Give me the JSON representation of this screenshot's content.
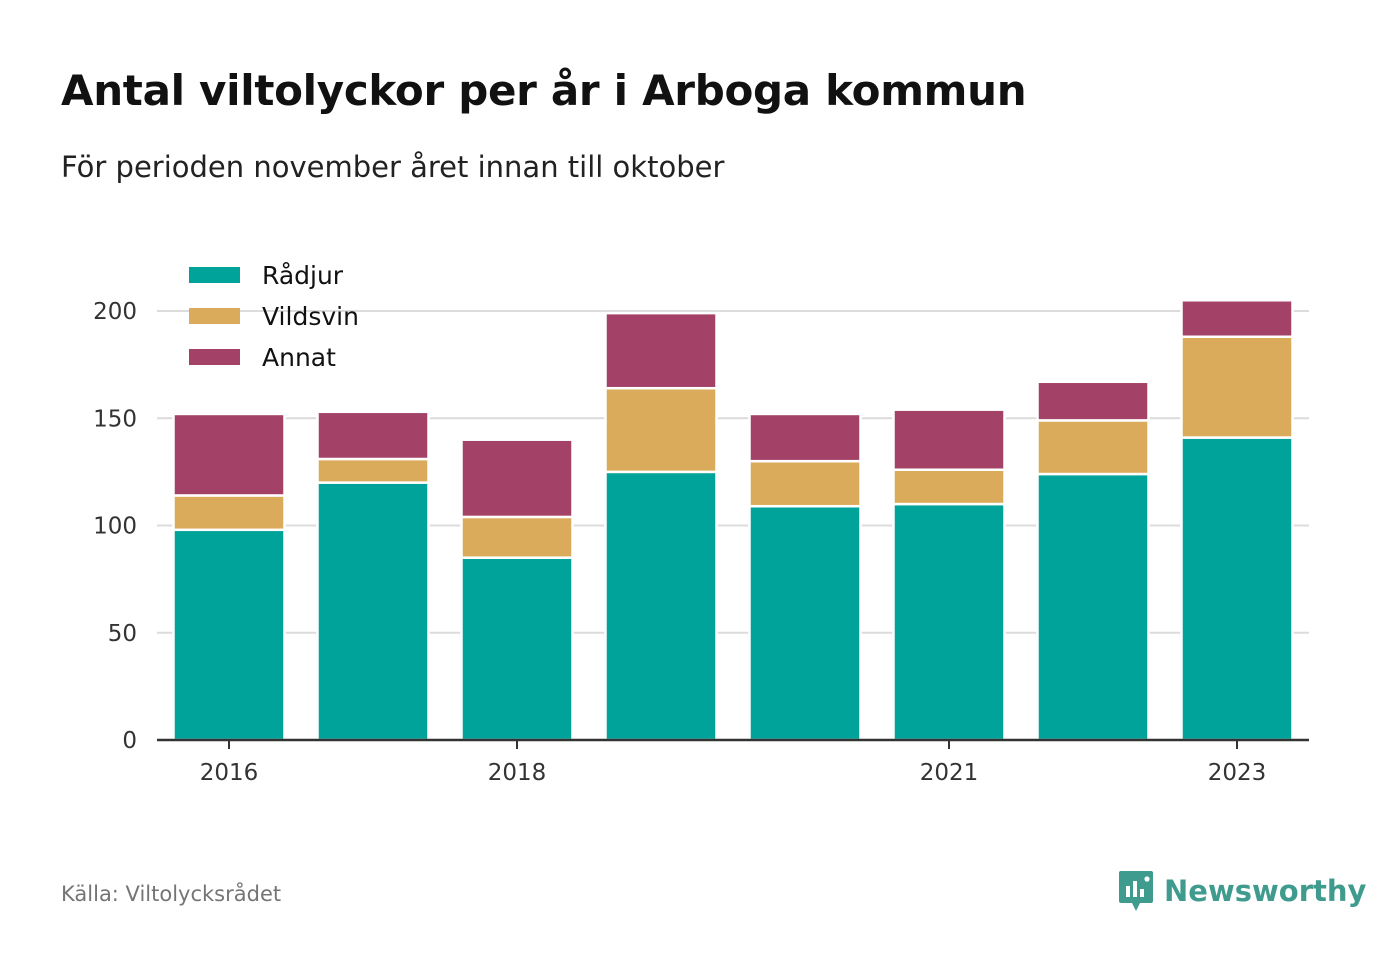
{
  "title": "Antal viltolyckor per år i Arboga kommun",
  "subtitle": "För perioden november året innan till oktober",
  "source": "Källa: Viltolycksrådet",
  "brand": {
    "name": "Newsworthy",
    "icon": "newsworthy-logo-icon",
    "color": "#3f9b8e"
  },
  "chart_data": {
    "type": "bar",
    "stacked": true,
    "categories": [
      "2016",
      "2017",
      "2018",
      "2019",
      "2020",
      "2021",
      "2022",
      "2023"
    ],
    "x_tick_labels": [
      "2016",
      "2018",
      "2021",
      "2023"
    ],
    "y_ticks": [
      0,
      50,
      100,
      150,
      200
    ],
    "ylim": [
      0,
      210
    ],
    "grid": true,
    "legend_position": "top-left",
    "series": [
      {
        "name": "Rådjur",
        "color": "#00a39a",
        "values": [
          98,
          120,
          85,
          125,
          109,
          110,
          124,
          141
        ]
      },
      {
        "name": "Vildsvin",
        "color": "#daab5a",
        "values": [
          16,
          11,
          19,
          39,
          21,
          16,
          25,
          47
        ]
      },
      {
        "name": "Annat",
        "color": "#a34166",
        "values": [
          38,
          22,
          36,
          35,
          22,
          28,
          18,
          17
        ]
      }
    ]
  }
}
